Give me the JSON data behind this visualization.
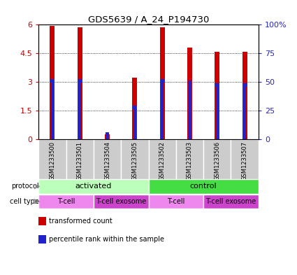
{
  "title": "GDS5639 / A_24_P194730",
  "samples": [
    "GSM1233500",
    "GSM1233501",
    "GSM1233504",
    "GSM1233505",
    "GSM1233502",
    "GSM1233503",
    "GSM1233506",
    "GSM1233507"
  ],
  "transformed_counts": [
    5.95,
    5.85,
    0.27,
    3.22,
    5.88,
    4.82,
    4.58,
    4.6
  ],
  "percentile_ranks": [
    3.07,
    3.07,
    0.28,
    1.68,
    3.07,
    2.98,
    2.85,
    2.85
  ],
  "ylim_left": [
    0,
    6
  ],
  "ylim_right": [
    0,
    6
  ],
  "yticks_left": [
    0,
    1.5,
    3.0,
    4.5,
    6
  ],
  "yticks_left_labels": [
    "0",
    "1.5",
    "3",
    "4.5",
    "6"
  ],
  "yticks_right": [
    0,
    1.5,
    3.0,
    4.5,
    6
  ],
  "yticks_right_labels": [
    "0",
    "25",
    "50",
    "75",
    "100%"
  ],
  "bar_color": "#cc0000",
  "percentile_color": "#2222cc",
  "bar_width": 0.18,
  "grid_color": "black",
  "protocol_labels": [
    {
      "label": "activated",
      "start": 0,
      "end": 4,
      "color": "#bbffbb"
    },
    {
      "label": "control",
      "start": 4,
      "end": 8,
      "color": "#44dd44"
    }
  ],
  "cell_type_labels": [
    {
      "label": "T-cell",
      "start": 0,
      "end": 2,
      "color": "#ee88ee"
    },
    {
      "label": "T-cell exosome",
      "start": 2,
      "end": 4,
      "color": "#cc44cc"
    },
    {
      "label": "T-cell",
      "start": 4,
      "end": 6,
      "color": "#ee88ee"
    },
    {
      "label": "T-cell exosome",
      "start": 6,
      "end": 8,
      "color": "#cc44cc"
    }
  ],
  "protocol_row_label": "protocol",
  "cell_type_row_label": "cell type",
  "legend_items": [
    {
      "label": "transformed count",
      "color": "#cc0000"
    },
    {
      "label": "percentile rank within the sample",
      "color": "#2222cc"
    }
  ],
  "sample_box_color": "#cccccc",
  "axis_left_color": "#cc0000",
  "axis_right_color": "#2222cc",
  "bg_color": "#ffffff"
}
